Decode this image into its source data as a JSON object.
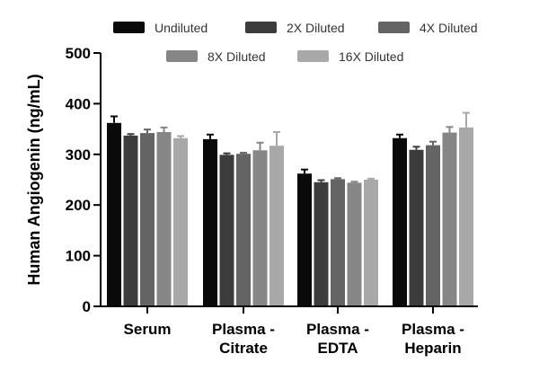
{
  "chart_data": {
    "type": "bar",
    "title": "",
    "xlabel": "",
    "ylabel": "Human  Angiogenin (ng/mL)",
    "ylim": [
      0,
      500
    ],
    "yticks": [
      "0",
      "100",
      "200",
      "300",
      "400",
      "500"
    ],
    "ytick_values": [
      0,
      100,
      200,
      300,
      400,
      500
    ],
    "categories": [
      [
        "Serum"
      ],
      [
        "Plasma -",
        "Citrate"
      ],
      [
        "Plasma -",
        "EDTA"
      ],
      [
        "Plasma -",
        "Heparin"
      ]
    ],
    "legend_position": "top",
    "grid": false,
    "series": [
      {
        "name": "Undiluted",
        "color": "#0a0a0a",
        "values": [
          362,
          330,
          262,
          332
        ],
        "errors": [
          13,
          9,
          8,
          7
        ]
      },
      {
        "name": "2X Diluted",
        "color": "#3c3c3c",
        "values": [
          337,
          299,
          245,
          309
        ],
        "errors": [
          3,
          3,
          4,
          6
        ]
      },
      {
        "name": "4X Diluted",
        "color": "#646464",
        "values": [
          342,
          301,
          251,
          318
        ],
        "errors": [
          7,
          2,
          2,
          7
        ]
      },
      {
        "name": "8X Diluted",
        "color": "#868686",
        "values": [
          344,
          308,
          244,
          343
        ],
        "errors": [
          9,
          15,
          2,
          11
        ]
      },
      {
        "name": "16X Diluted",
        "color": "#a8a8a8",
        "values": [
          332,
          317,
          250,
          353
        ],
        "errors": [
          4,
          27,
          2,
          29
        ]
      }
    ]
  }
}
